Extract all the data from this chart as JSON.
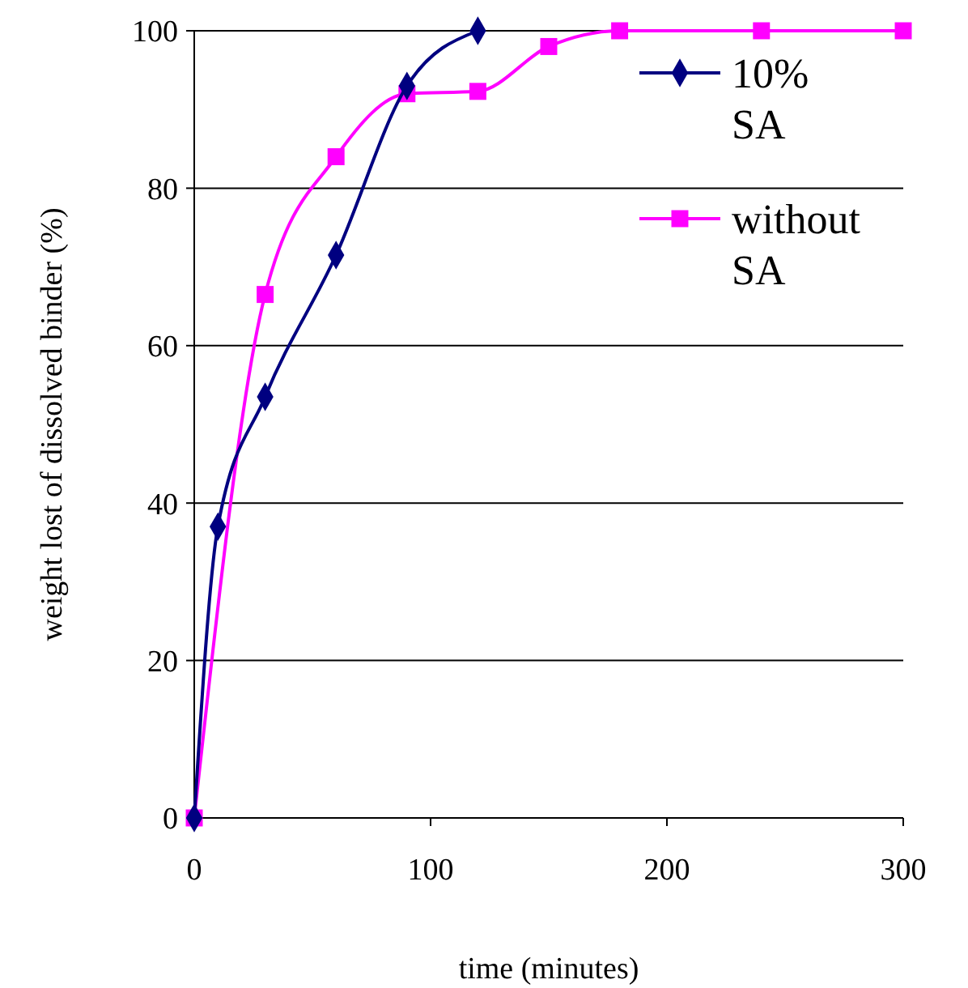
{
  "chart_data": {
    "type": "line",
    "xlabel": "time (minutes)",
    "ylabel": "weight lost of dissolved binder (%)",
    "xlim": [
      0,
      300
    ],
    "xticks": [
      0,
      100,
      200,
      300
    ],
    "ylim": [
      0,
      100
    ],
    "yticks": [
      0,
      20,
      40,
      60,
      80,
      100
    ],
    "grid": "y",
    "legend": "top right",
    "line_style": "solid",
    "series": [
      {
        "name": "10% SA",
        "color": "#000080",
        "marker": "diamond",
        "x": [
          0,
          10,
          30,
          60,
          90,
          120
        ],
        "values": [
          0,
          37,
          53.5,
          71.5,
          93,
          100
        ]
      },
      {
        "name": "without SA",
        "color": "#ff00ff",
        "marker": "square",
        "x": [
          0,
          30,
          60,
          90,
          120,
          150,
          180,
          240,
          300
        ],
        "values": [
          0,
          66.5,
          84,
          92,
          92.3,
          98,
          100,
          100,
          100
        ]
      }
    ]
  }
}
